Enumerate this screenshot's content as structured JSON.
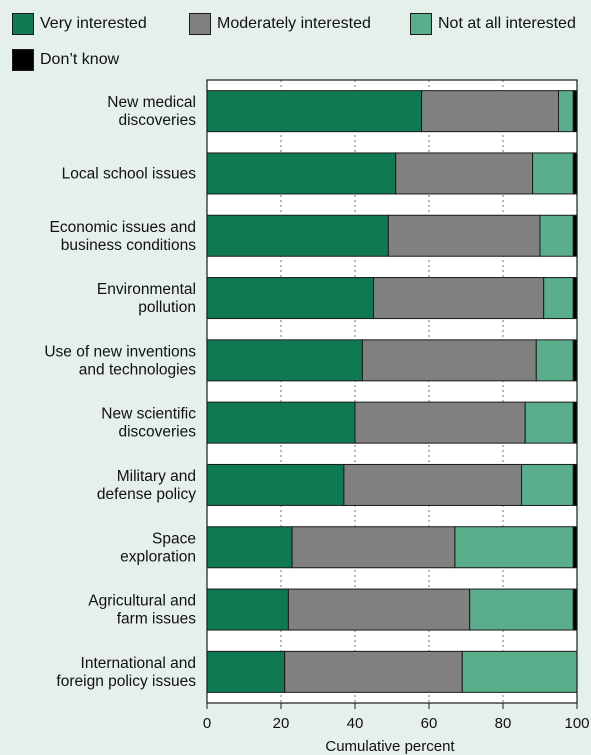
{
  "chart_data": {
    "type": "bar",
    "orientation": "horizontal",
    "stacked": true,
    "categories": [
      "New medical discoveries",
      "Local school issues",
      "Economic issues and business conditions",
      "Environmental pollution",
      "Use of new inventions and technologies",
      "New scientific discoveries",
      "Military and defense policy",
      "Space exploration",
      "Agricultural and farm issues",
      "International and foreign policy issues"
    ],
    "category_label_lines": [
      [
        "New medical",
        "discoveries"
      ],
      [
        "Local school issues"
      ],
      [
        "Economic issues and",
        "business conditions"
      ],
      [
        "Environmental",
        "pollution"
      ],
      [
        "Use of new inventions",
        "and technologies"
      ],
      [
        "New scientific",
        "discoveries"
      ],
      [
        "Military and",
        "defense policy"
      ],
      [
        "Space",
        "exploration"
      ],
      [
        "Agricultural and",
        "farm issues"
      ],
      [
        "International and",
        "foreign policy issues"
      ]
    ],
    "series": [
      {
        "name": "Very interested",
        "color": "#0f7a52",
        "values": [
          58,
          51,
          49,
          45,
          42,
          40,
          37,
          23,
          22,
          21
        ]
      },
      {
        "name": "Moderately interested",
        "color": "#808080",
        "values": [
          37,
          37,
          41,
          46,
          47,
          46,
          48,
          44,
          49,
          48
        ]
      },
      {
        "name": "Not at all interested",
        "color": "#5aae8c",
        "values": [
          4,
          11,
          9,
          8,
          10,
          13,
          14,
          32,
          28,
          31
        ]
      },
      {
        "name": "Don’t know",
        "color": "#000000",
        "values": [
          1,
          1,
          1,
          1,
          1,
          1,
          1,
          1,
          1,
          0
        ]
      }
    ],
    "x_ticks": [
      0,
      20,
      40,
      60,
      80,
      100
    ],
    "xlim": [
      0,
      100
    ],
    "xlabel": "Cumulative percent",
    "grid": true,
    "legend_position": "top"
  }
}
